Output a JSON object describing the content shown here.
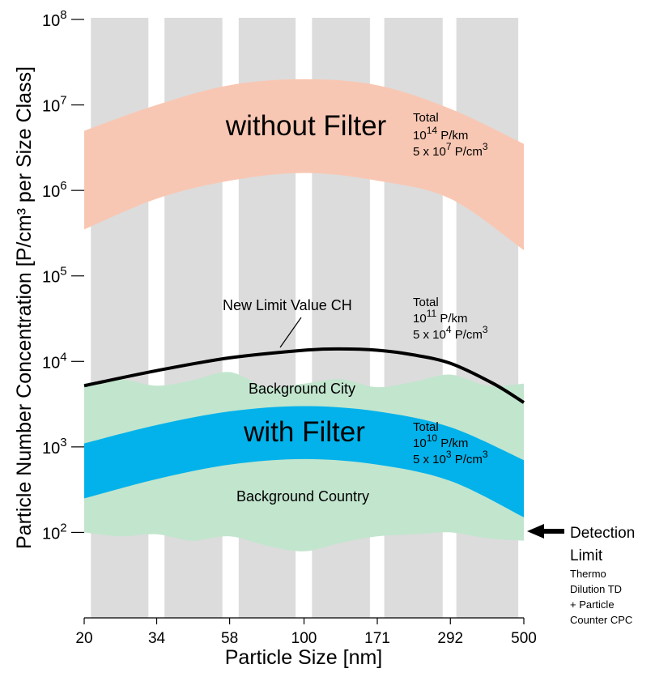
{
  "chart_data": {
    "type": "area",
    "xlabel": "Particle Size [nm]",
    "ylabel": "Particle Number Concentration [P/cm³ per Size Class]",
    "x_scale": "log",
    "y_scale": "log",
    "xlim": [
      20,
      500
    ],
    "ylim": [
      10,
      100000000
    ],
    "x_ticks": [
      20,
      34,
      58,
      100,
      171,
      292,
      500
    ],
    "x_tick_labels": [
      "20",
      "34",
      "58",
      "100",
      "171",
      "292",
      "500"
    ],
    "y_ticks": [
      {
        "value": 100,
        "base": "10",
        "exp": "2"
      },
      {
        "value": 1000,
        "base": "10",
        "exp": "3"
      },
      {
        "value": 10000,
        "base": "10",
        "exp": "4"
      },
      {
        "value": 100000,
        "base": "10",
        "exp": "5"
      },
      {
        "value": 1000000,
        "base": "10",
        "exp": "6"
      },
      {
        "value": 10000000,
        "base": "10",
        "exp": "7"
      },
      {
        "value": 100000000,
        "base": "10",
        "exp": "8"
      }
    ],
    "size_classes": [
      [
        21,
        32
      ],
      [
        36,
        55
      ],
      [
        62,
        94
      ],
      [
        106,
        162
      ],
      [
        180,
        276
      ],
      [
        305,
        480
      ]
    ],
    "bands": [
      {
        "label": "without Filter",
        "color": "#f8c7b3",
        "x": [
          20,
          34,
          58,
          100,
          171,
          292,
          500
        ],
        "upper": [
          5000000,
          10000000,
          17000000,
          20000000,
          17000000,
          9000000,
          3500000
        ],
        "lower": [
          350000,
          800000,
          1300000,
          1600000,
          1300000,
          800000,
          200000
        ]
      },
      {
        "label": "Background City",
        "color": "#c2e5ce",
        "x": [
          20,
          26,
          34,
          44,
          58,
          76,
          100,
          130,
          171,
          225,
          292,
          385,
          500
        ],
        "upper": [
          5500,
          6200,
          5200,
          6000,
          7500,
          5000,
          5500,
          6200,
          5000,
          5800,
          7000,
          5200,
          5500
        ],
        "lower": [
          100,
          90,
          95,
          80,
          90,
          70,
          60,
          75,
          90,
          95,
          100,
          85,
          80
        ]
      },
      {
        "label": "with Filter",
        "color": "#03b2ea",
        "x": [
          20,
          34,
          58,
          100,
          171,
          292,
          500
        ],
        "upper": [
          1100,
          1800,
          2600,
          3000,
          2600,
          1700,
          700
        ],
        "lower": [
          250,
          420,
          620,
          720,
          620,
          400,
          150
        ]
      }
    ],
    "series": [
      {
        "name": "New Limit Value CH",
        "color": "#000000",
        "x": [
          20,
          34,
          58,
          100,
          130,
          171,
          220,
          292,
          400,
          500
        ],
        "y": [
          5200,
          7800,
          11000,
          13500,
          14000,
          13500,
          12000,
          9500,
          5500,
          3300
        ]
      }
    ],
    "annotations": {
      "without_filter": {
        "label": "without Filter",
        "total": "Total",
        "per_km": {
          "base": "10",
          "exp": "14",
          "unit": " P/km"
        },
        "per_cm3": {
          "coef": "5 x 10",
          "exp": "7",
          "unit": " P/cm",
          "unit_exp": "3"
        }
      },
      "limit": {
        "label": "New Limit Value CH",
        "total": "Total",
        "per_km": {
          "base": "10",
          "exp": "11",
          "unit": " P/km"
        },
        "per_cm3": {
          "coef": "5 x 10",
          "exp": "4",
          "unit": " P/cm",
          "unit_exp": "3"
        }
      },
      "with_filter": {
        "label": "with Filter",
        "total": "Total",
        "per_km": {
          "base": "10",
          "exp": "10",
          "unit": " P/km"
        },
        "per_cm3": {
          "coef": "5 x 10",
          "exp": "3",
          "unit": " P/cm",
          "unit_exp": "3"
        }
      },
      "background_city": "Background City",
      "background_country": "Background Country",
      "detection": {
        "line1": "Detection",
        "line2": "Limit",
        "line3": "Thermo",
        "line4": "Dilution TD",
        "line5": "+ Particle",
        "line6": "Counter CPC",
        "value": 100
      }
    }
  }
}
